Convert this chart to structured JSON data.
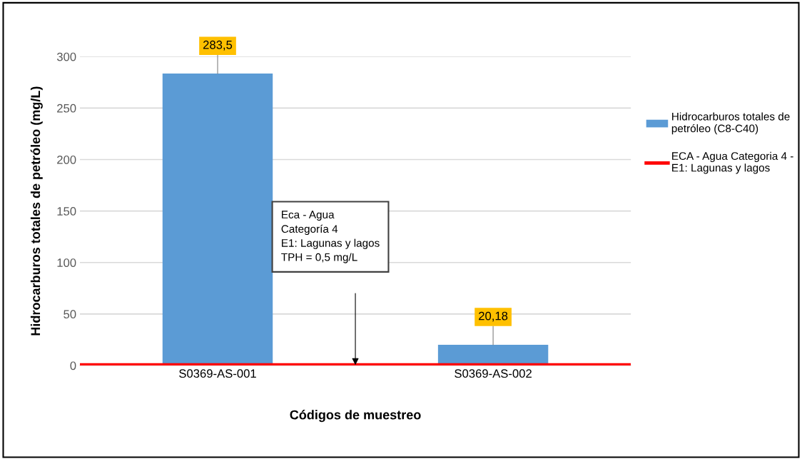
{
  "chart_data": {
    "type": "bar",
    "xlabel": "Códigos de muestreo",
    "ylabel": "Hidrocarburos totales de petróleo (mg/L)",
    "categories": [
      "S0369-AS-001",
      "S0369-AS-002"
    ],
    "series": [
      {
        "name": "Hidrocarburos totales de petróleo (C8-C40)",
        "color": "#5b9bd5",
        "values": [
          283.5,
          20.18
        ],
        "value_labels": [
          "283,5",
          "20,18"
        ]
      }
    ],
    "ref_lines": [
      {
        "axis": "y",
        "value": 0.5,
        "label": "ECA - Agua Categoria 4 - E1: Lagunas y lagos",
        "color": "#ff0000",
        "line_style": "solid"
      }
    ],
    "annotations": [
      "Eca - Agua\nCategoría 4\nE1: Lagunas y lagos\nTPH = 0,5 mg/L"
    ],
    "ylim": [
      0,
      300
    ],
    "yticks": [
      0,
      50,
      100,
      150,
      200,
      250,
      300
    ],
    "grid": "y",
    "legend": "right"
  }
}
